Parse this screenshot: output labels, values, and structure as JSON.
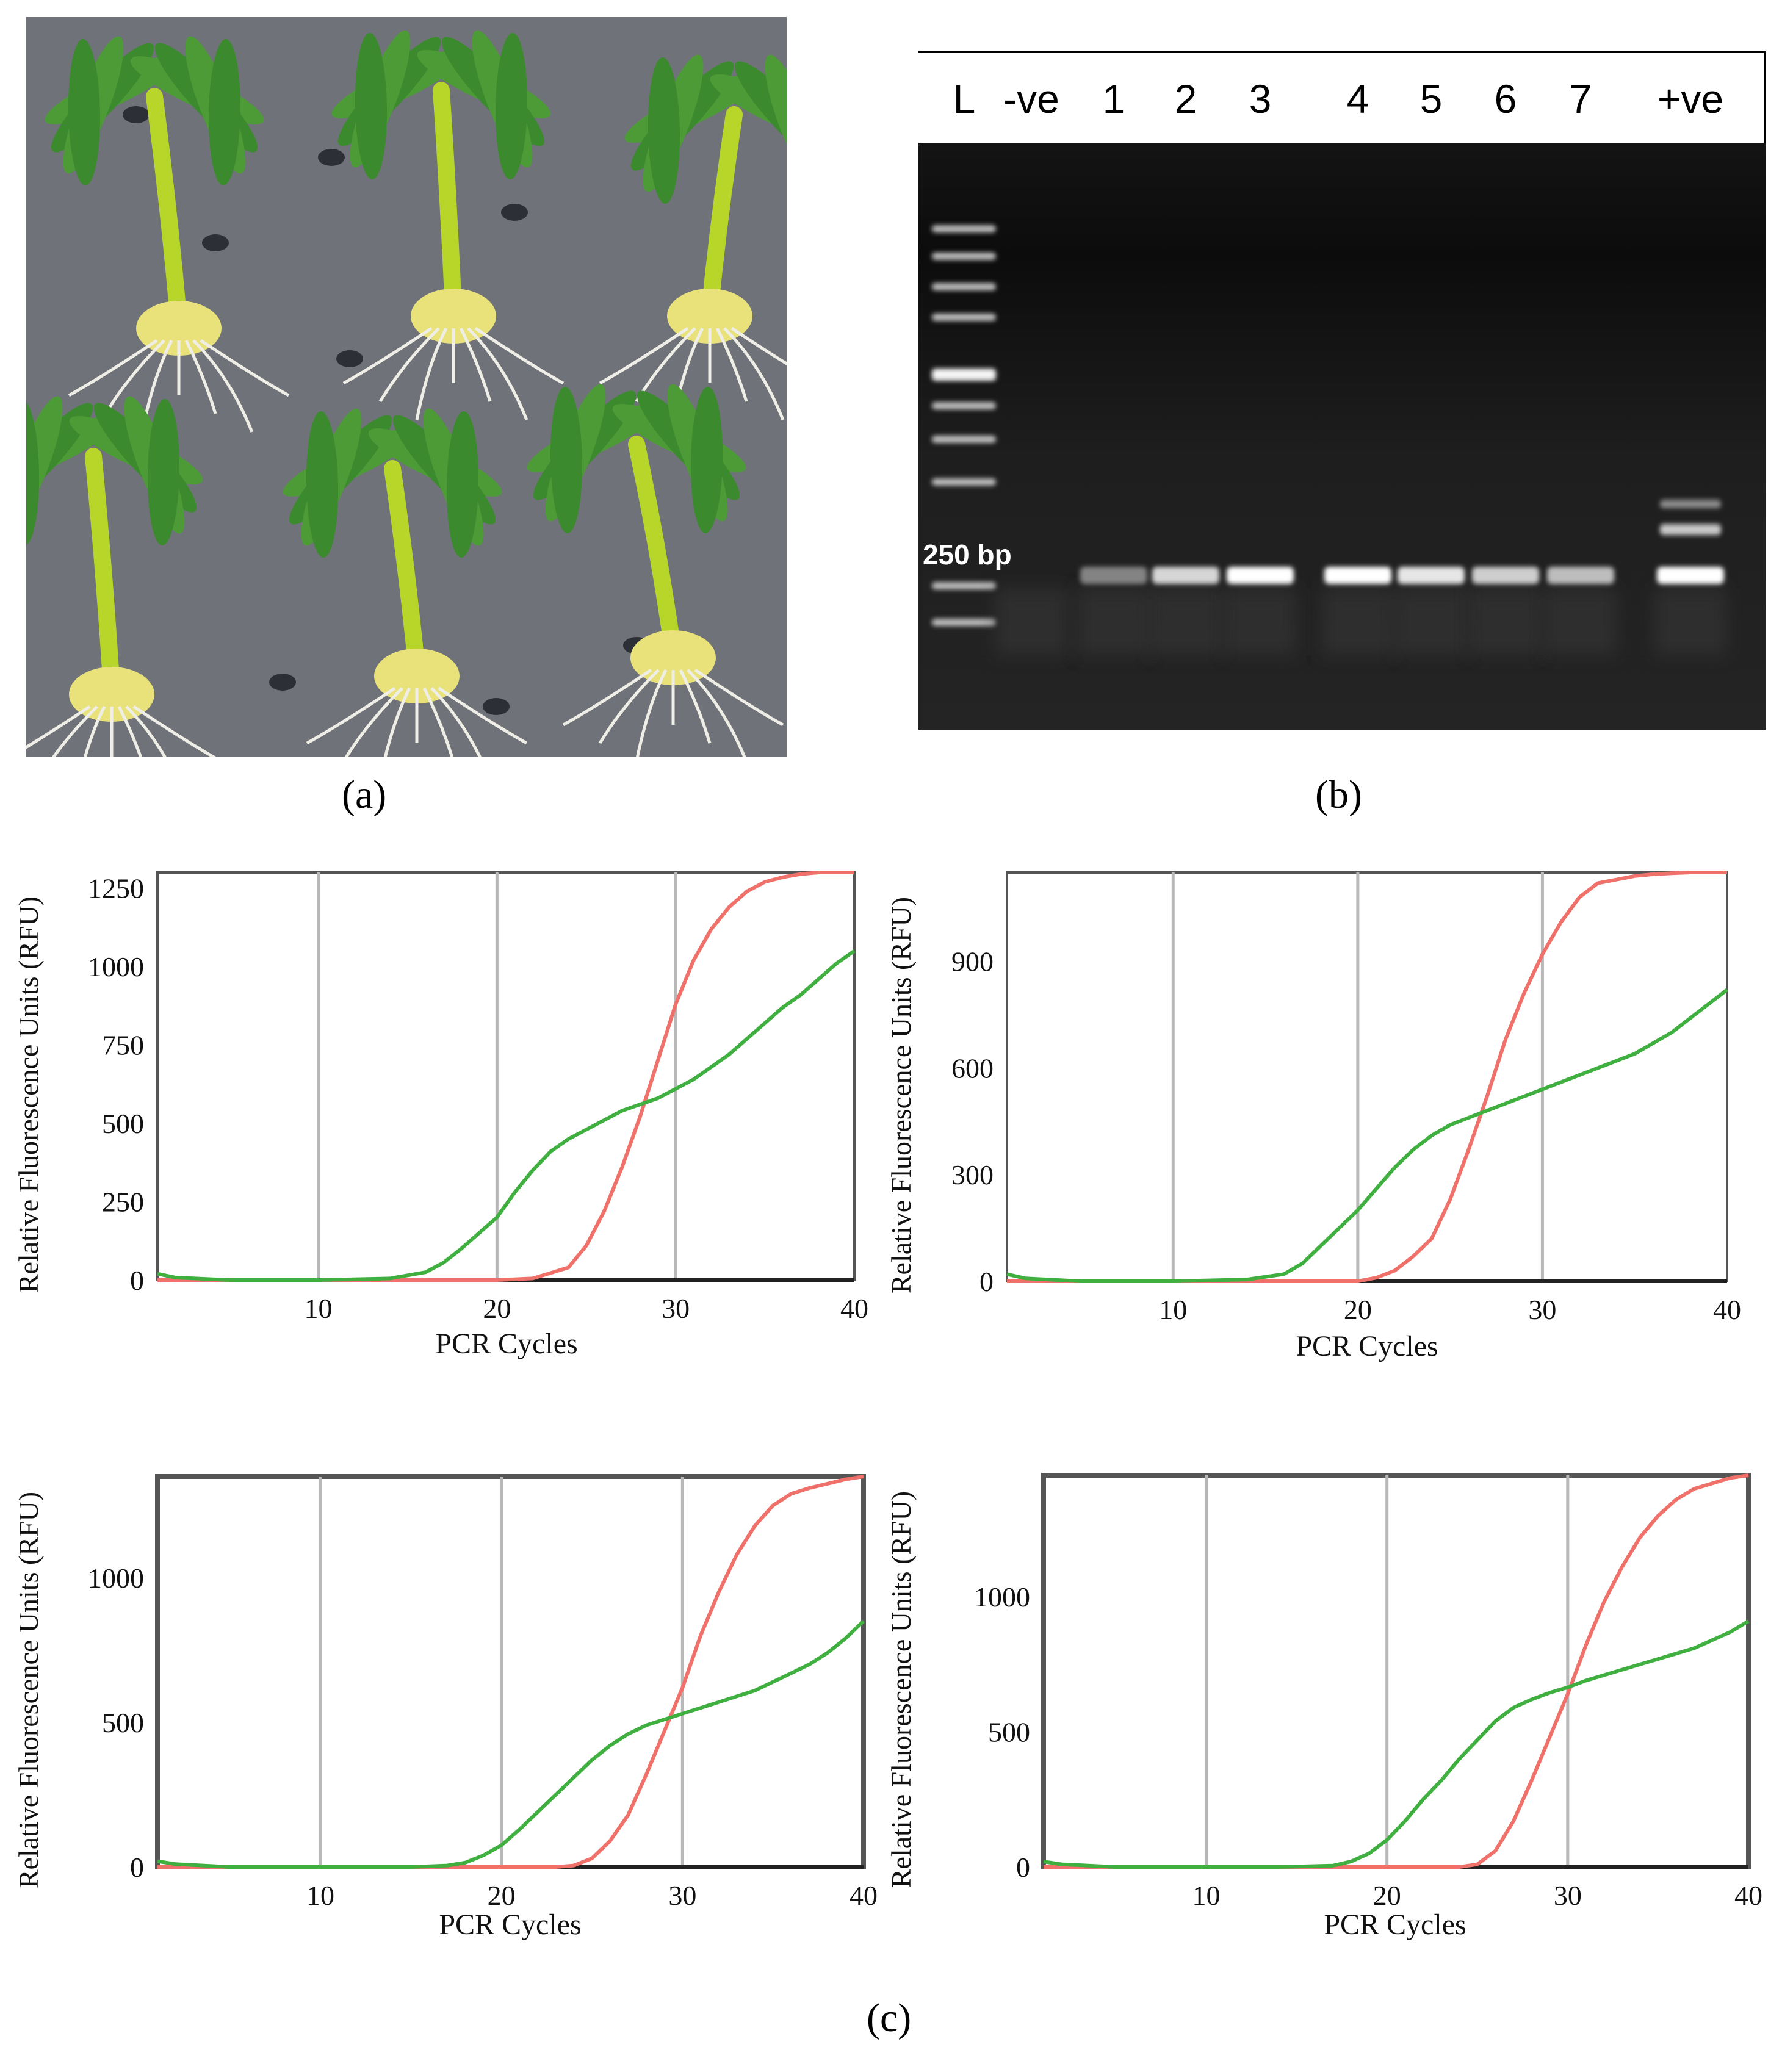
{
  "panels": {
    "a": "(a)",
    "b": "(b)",
    "c": "(c)"
  },
  "gel": {
    "lanes": [
      "L",
      "-ve",
      "1",
      "2",
      "3",
      "4",
      "5",
      "6",
      "7",
      "+ve"
    ],
    "size_marker": "250 bp"
  },
  "colors": {
    "red_series": "#f0706a",
    "green_series": "#3fb040",
    "grid": "#b8b8b8"
  },
  "chart_data": [
    {
      "type": "line",
      "xlabel": "PCR Cycles",
      "ylabel": "Relative Fluorescence Units (RFU)",
      "xlim": [
        1,
        40
      ],
      "ylim": [
        0,
        1300
      ],
      "xticks": [
        10,
        20,
        30,
        40
      ],
      "yticks": [
        0,
        250,
        500,
        750,
        1000,
        1250
      ],
      "grid_x": [
        10,
        20,
        30
      ],
      "series": [
        {
          "color": "#f0706a",
          "x": [
            1,
            5,
            10,
            15,
            20,
            22,
            24,
            25,
            26,
            27,
            28,
            29,
            30,
            31,
            32,
            33,
            34,
            35,
            36,
            37,
            38,
            39,
            40
          ],
          "y": [
            0,
            0,
            0,
            0,
            0,
            5,
            40,
            110,
            220,
            360,
            520,
            700,
            880,
            1020,
            1120,
            1190,
            1240,
            1270,
            1285,
            1295,
            1300,
            1300,
            1300
          ]
        },
        {
          "color": "#3fb040",
          "x": [
            1,
            2,
            5,
            10,
            14,
            16,
            17,
            18,
            19,
            20,
            21,
            22,
            23,
            24,
            25,
            26,
            27,
            28,
            29,
            30,
            31,
            32,
            33,
            34,
            35,
            36,
            37,
            38,
            39,
            40
          ],
          "y": [
            20,
            8,
            0,
            0,
            5,
            25,
            55,
            100,
            150,
            200,
            280,
            350,
            410,
            450,
            480,
            510,
            540,
            560,
            580,
            610,
            640,
            680,
            720,
            770,
            820,
            870,
            910,
            960,
            1010,
            1050
          ]
        }
      ]
    },
    {
      "type": "line",
      "xlabel": "PCR Cycles",
      "ylabel": "Relative Fluorescence Units (RFU)",
      "xlim": [
        1,
        40
      ],
      "ylim": [
        0,
        1150
      ],
      "xticks": [
        10,
        20,
        30,
        40
      ],
      "yticks": [
        0,
        300,
        600,
        900
      ],
      "grid_x": [
        10,
        20,
        30
      ],
      "series": [
        {
          "color": "#f0706a",
          "x": [
            1,
            5,
            10,
            15,
            20,
            21,
            22,
            23,
            24,
            25,
            26,
            27,
            28,
            29,
            30,
            31,
            32,
            33,
            34,
            35,
            36,
            37,
            38,
            39,
            40
          ],
          "y": [
            0,
            0,
            0,
            0,
            0,
            10,
            30,
            70,
            120,
            230,
            370,
            520,
            680,
            810,
            920,
            1010,
            1080,
            1120,
            1130,
            1140,
            1145,
            1148,
            1150,
            1150,
            1150
          ]
        },
        {
          "color": "#3fb040",
          "x": [
            1,
            2,
            5,
            10,
            14,
            16,
            17,
            18,
            19,
            20,
            21,
            22,
            23,
            24,
            25,
            26,
            27,
            28,
            29,
            30,
            31,
            32,
            33,
            34,
            35,
            36,
            37,
            38,
            39,
            40
          ],
          "y": [
            20,
            8,
            0,
            0,
            5,
            20,
            50,
            100,
            150,
            200,
            260,
            320,
            370,
            410,
            440,
            460,
            480,
            500,
            520,
            540,
            560,
            580,
            600,
            620,
            640,
            670,
            700,
            740,
            780,
            820
          ]
        }
      ]
    },
    {
      "type": "line",
      "xlabel": "PCR Cycles",
      "ylabel": "Relative Fluorescence Units (RFU)",
      "xlim": [
        1,
        40
      ],
      "ylim": [
        0,
        1350
      ],
      "xticks": [
        10,
        20,
        30,
        40
      ],
      "yticks": [
        0,
        500,
        1000
      ],
      "grid_x": [
        10,
        20,
        30
      ],
      "series": [
        {
          "color": "#f0706a",
          "x": [
            1,
            5,
            10,
            15,
            20,
            23,
            24,
            25,
            26,
            27,
            28,
            29,
            30,
            31,
            32,
            33,
            34,
            35,
            36,
            37,
            38,
            39,
            40
          ],
          "y": [
            0,
            0,
            0,
            0,
            0,
            0,
            5,
            30,
            90,
            180,
            320,
            470,
            620,
            800,
            950,
            1080,
            1180,
            1250,
            1290,
            1310,
            1325,
            1340,
            1350
          ]
        },
        {
          "color": "#3fb040",
          "x": [
            1,
            2,
            5,
            10,
            15,
            17,
            18,
            19,
            20,
            21,
            22,
            23,
            24,
            25,
            26,
            27,
            28,
            29,
            30,
            31,
            32,
            33,
            34,
            35,
            36,
            37,
            38,
            39,
            40
          ],
          "y": [
            20,
            10,
            0,
            0,
            0,
            5,
            15,
            40,
            75,
            130,
            190,
            250,
            310,
            370,
            420,
            460,
            490,
            510,
            530,
            550,
            570,
            590,
            610,
            640,
            670,
            700,
            740,
            790,
            850
          ]
        }
      ]
    },
    {
      "type": "line",
      "xlabel": "PCR Cycles",
      "ylabel": "Relative Fluorescence Units (RFU)",
      "xlim": [
        1,
        40
      ],
      "ylim": [
        0,
        1450
      ],
      "xticks": [
        10,
        20,
        30,
        40
      ],
      "yticks": [
        0,
        500,
        1000
      ],
      "grid_x": [
        10,
        20,
        30
      ],
      "series": [
        {
          "color": "#f0706a",
          "x": [
            1,
            5,
            10,
            15,
            20,
            24,
            25,
            26,
            27,
            28,
            29,
            30,
            31,
            32,
            33,
            34,
            35,
            36,
            37,
            38,
            39,
            40
          ],
          "y": [
            0,
            0,
            0,
            0,
            0,
            0,
            10,
            60,
            170,
            320,
            480,
            640,
            820,
            980,
            1110,
            1220,
            1300,
            1360,
            1400,
            1420,
            1440,
            1450
          ]
        },
        {
          "color": "#3fb040",
          "x": [
            1,
            2,
            5,
            10,
            14,
            17,
            18,
            19,
            20,
            21,
            22,
            23,
            24,
            25,
            26,
            27,
            28,
            29,
            30,
            31,
            32,
            33,
            34,
            35,
            36,
            37,
            38,
            39,
            40
          ],
          "y": [
            20,
            10,
            0,
            0,
            0,
            5,
            20,
            50,
            100,
            170,
            250,
            320,
            400,
            470,
            540,
            590,
            620,
            645,
            665,
            690,
            710,
            730,
            750,
            770,
            790,
            810,
            840,
            870,
            910
          ]
        }
      ]
    }
  ]
}
